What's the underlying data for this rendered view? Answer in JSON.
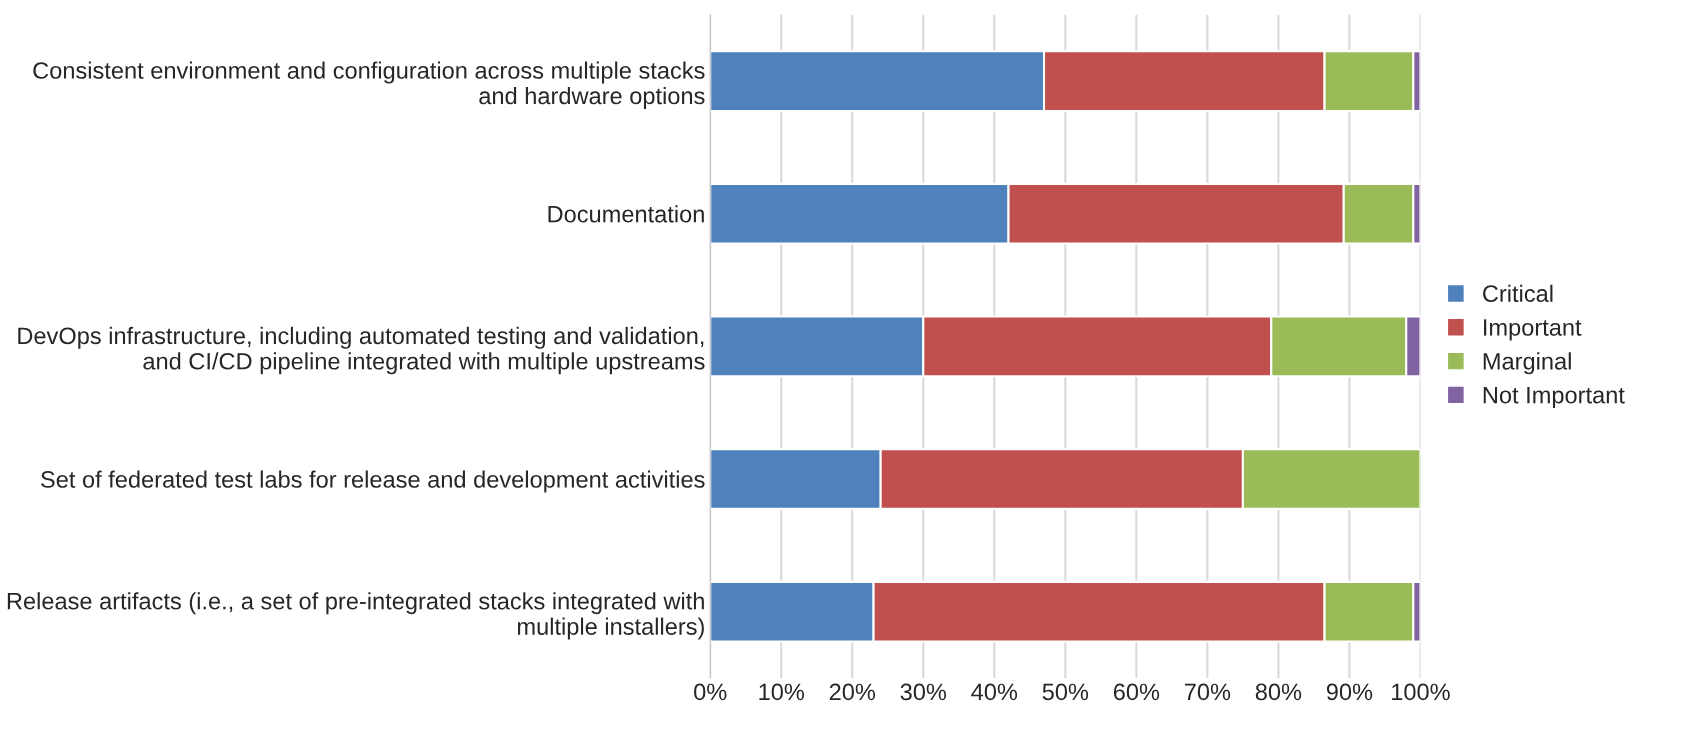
{
  "chart_data": {
    "type": "bar",
    "orientation": "horizontal",
    "stacked": true,
    "categories": [
      "Consistent environment and configuration across multiple stacks and hardware options",
      "Documentation",
      "DevOps infrastructure, including automated testing and validation, and CI/CD pipeline integrated with multiple upstreams",
      "Set of federated test labs for release and development activities",
      "Release artifacts (i.e., a set of pre-integrated stacks integrated with multiple installers)"
    ],
    "series": [
      {
        "name": "Critical",
        "color": "#4f81bd",
        "values": [
          47,
          42,
          30,
          24,
          23
        ]
      },
      {
        "name": "Important",
        "color": "#c0504d",
        "values": [
          39.5,
          47.2,
          49,
          51,
          63.5
        ]
      },
      {
        "name": "Marginal",
        "color": "#9bbb59",
        "values": [
          12.5,
          9.8,
          19,
          25,
          12.5
        ]
      },
      {
        "name": "Not Important",
        "color": "#8064a2",
        "values": [
          1,
          1,
          2,
          null,
          1
        ]
      }
    ],
    "xlim": [
      0,
      100
    ],
    "xticks": [
      {
        "value": 0,
        "label": "0%"
      },
      {
        "value": 10,
        "label": "10%"
      },
      {
        "value": 20,
        "label": "20%"
      },
      {
        "value": 30,
        "label": "30%"
      },
      {
        "value": 40,
        "label": "40%"
      },
      {
        "value": 50,
        "label": "50%"
      },
      {
        "value": 60,
        "label": "60%"
      },
      {
        "value": 70,
        "label": "70%"
      },
      {
        "value": 80,
        "label": "80%"
      },
      {
        "value": 90,
        "label": "90%"
      },
      {
        "value": 100,
        "label": "100%"
      }
    ],
    "grid": "x",
    "legend": "right"
  }
}
